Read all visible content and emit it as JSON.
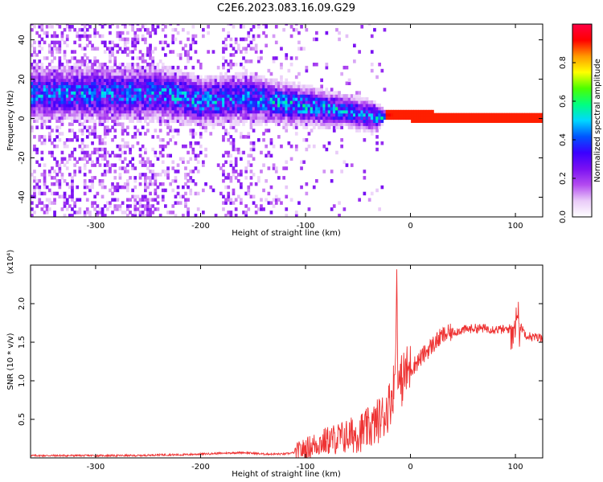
{
  "title": "C2E6.2023.083.16.09.G29",
  "chart_data": [
    {
      "type": "heatmap",
      "title": "C2E6.2023.083.16.09.G29",
      "xlabel": "Height of straight line (km)",
      "ylabel": "Frequency (Hz)",
      "xlim": [
        -362,
        126
      ],
      "ylim": [
        -50,
        48
      ],
      "xticks": [
        -300,
        -200,
        -100,
        0,
        100
      ],
      "xtick_labels": [
        "-300",
        "-200",
        "-100",
        "0",
        "100"
      ],
      "yticks": [
        -40,
        -20,
        0,
        20,
        40
      ],
      "ytick_labels": [
        "-40",
        "-20",
        "0",
        "20",
        "40"
      ],
      "colorbar": {
        "label": "Normalized spectral amplitude",
        "range": [
          0,
          1
        ],
        "ticks": [
          0.0,
          0.2,
          0.4,
          0.6,
          0.8
        ],
        "tick_labels": [
          "0.0",
          "0.2",
          "0.4",
          "0.6",
          "0.8"
        ],
        "colormap": [
          "#ffffff",
          "#e9cbf8",
          "#b34bf0",
          "#7a10f2",
          "#3a00ff",
          "#0055ff",
          "#00d8ff",
          "#00ff80",
          "#4cff00",
          "#ffff00",
          "#ff9900",
          "#ff0000",
          "#ff0044"
        ]
      },
      "band_profile": [
        {
          "x": -235,
          "freq_center": 12,
          "spread": 10,
          "amp": 0.55
        },
        {
          "x": -200,
          "freq_center": 8,
          "spread": 9,
          "amp": 0.6
        },
        {
          "x": -160,
          "freq_center": 10,
          "spread": 9,
          "amp": 0.55
        },
        {
          "x": -120,
          "freq_center": 7,
          "spread": 8,
          "amp": 0.6
        },
        {
          "x": -90,
          "freq_center": 5,
          "spread": 7,
          "amp": 0.6
        },
        {
          "x": -60,
          "freq_center": 3,
          "spread": 6,
          "amp": 0.6
        },
        {
          "x": -35,
          "freq_center": 0,
          "spread": 6,
          "amp": 0.5
        },
        {
          "x": -25,
          "freq_center": 1,
          "spread": 1.5,
          "amp": 0.95
        },
        {
          "x": 0,
          "freq_center": 0.5,
          "spread": 1,
          "amp": 0.98
        },
        {
          "x": 50,
          "freq_center": 0,
          "spread": 1,
          "amp": 0.98
        },
        {
          "x": 100,
          "freq_center": 0,
          "spread": 1,
          "amp": 0.98
        },
        {
          "x": 126,
          "freq_center": 0,
          "spread": 1,
          "amp": 0.98
        }
      ]
    },
    {
      "type": "line",
      "xlabel": "Height of straight line (km)",
      "ylabel": "SNR (10 * v/v)",
      "y_multiplier": "(x10⁴)",
      "xlim": [
        -362,
        126
      ],
      "ylim": [
        0,
        2.5
      ],
      "xticks": [
        -300,
        -200,
        -100,
        0,
        100
      ],
      "xtick_labels": [
        "-300",
        "-200",
        "-100",
        "0",
        "100"
      ],
      "yticks": [
        0.5,
        1.0,
        1.5,
        2.0
      ],
      "ytick_labels": [
        "0.5",
        "1.0",
        "1.5",
        "2.0"
      ],
      "color": "#ee3333",
      "series": [
        {
          "x": [
            -362,
            -340,
            -320,
            -300,
            -280,
            -260,
            -240,
            -220,
            -200,
            -180,
            -160,
            -150,
            -140,
            -130,
            -120,
            -110,
            -100,
            -90,
            -80,
            -70,
            -60,
            -50,
            -45,
            -40,
            -35,
            -30,
            -25,
            -20,
            -18,
            -15,
            -14,
            -13,
            -12,
            -10,
            -5,
            0,
            10,
            20,
            30,
            40,
            50,
            60,
            70,
            80,
            90,
            95,
            100,
            102,
            105,
            110,
            115,
            120,
            126
          ],
          "y": [
            0.03,
            0.03,
            0.03,
            0.03,
            0.03,
            0.03,
            0.04,
            0.04,
            0.05,
            0.06,
            0.07,
            0.06,
            0.05,
            0.05,
            0.05,
            0.07,
            0.12,
            0.18,
            0.22,
            0.25,
            0.28,
            0.32,
            0.35,
            0.38,
            0.42,
            0.5,
            0.55,
            0.7,
            0.8,
            1.0,
            1.4,
            2.5,
            0.9,
            0.95,
            1.1,
            1.15,
            1.3,
            1.45,
            1.58,
            1.63,
            1.66,
            1.68,
            1.68,
            1.67,
            1.66,
            1.68,
            1.75,
            1.85,
            1.7,
            1.6,
            1.57,
            1.56,
            1.56
          ]
        }
      ]
    }
  ]
}
